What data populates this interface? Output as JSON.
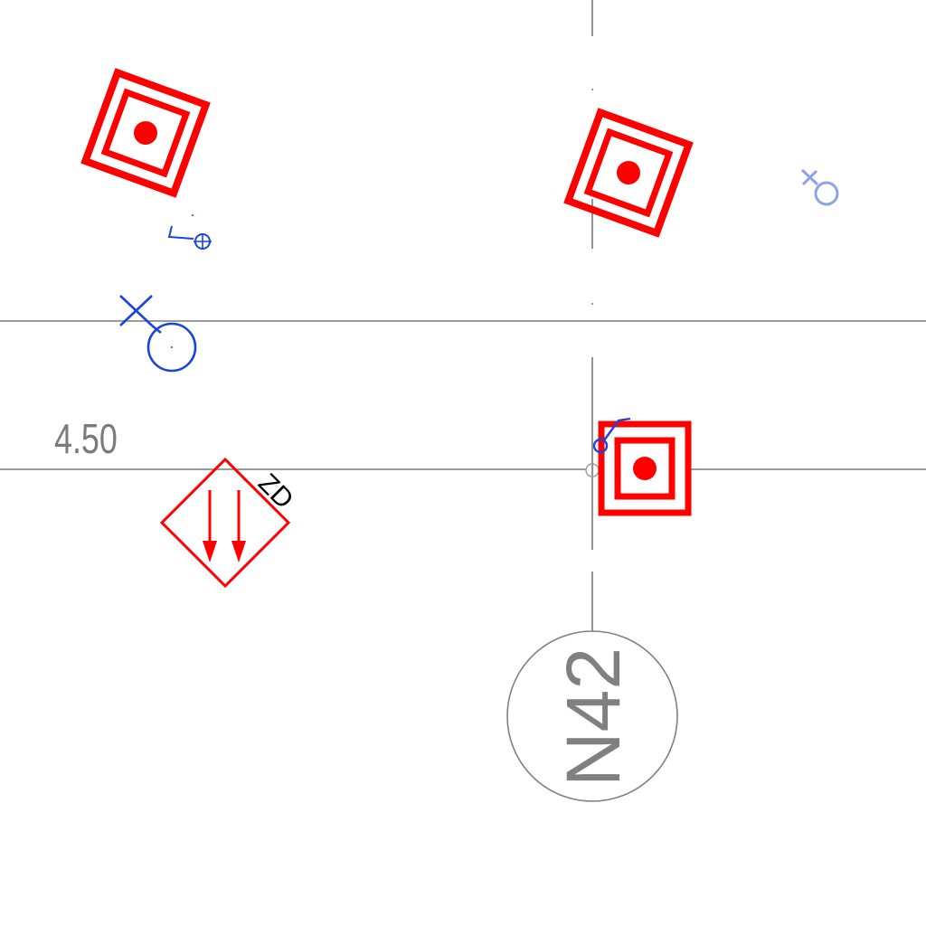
{
  "drawing": {
    "dimension_label": "4.50",
    "riser_tag": "ZD",
    "grid_axis_label": "N42"
  },
  "colors": {
    "grid_line": "#7a7a7a",
    "fire_symbol": "#ff0000",
    "pipe_symbol": "#1a44dd",
    "pipe_symbol_faded": "#8ea3e6",
    "axis_bubble": "#808080",
    "dimension_text": "#7b7b7b"
  },
  "symbols": [
    {
      "type": "fire-hydrant-box",
      "icon": "target-square-icon",
      "count": 3
    },
    {
      "type": "fire-hydrant-box-rotated",
      "icon": "target-square-icon",
      "count": 2
    },
    {
      "type": "downpipe-diamond",
      "icon": "down-arrows-diamond-icon",
      "count": 1
    },
    {
      "type": "pipe-valve",
      "icon": "valve-circle-icon",
      "count": 4
    }
  ]
}
